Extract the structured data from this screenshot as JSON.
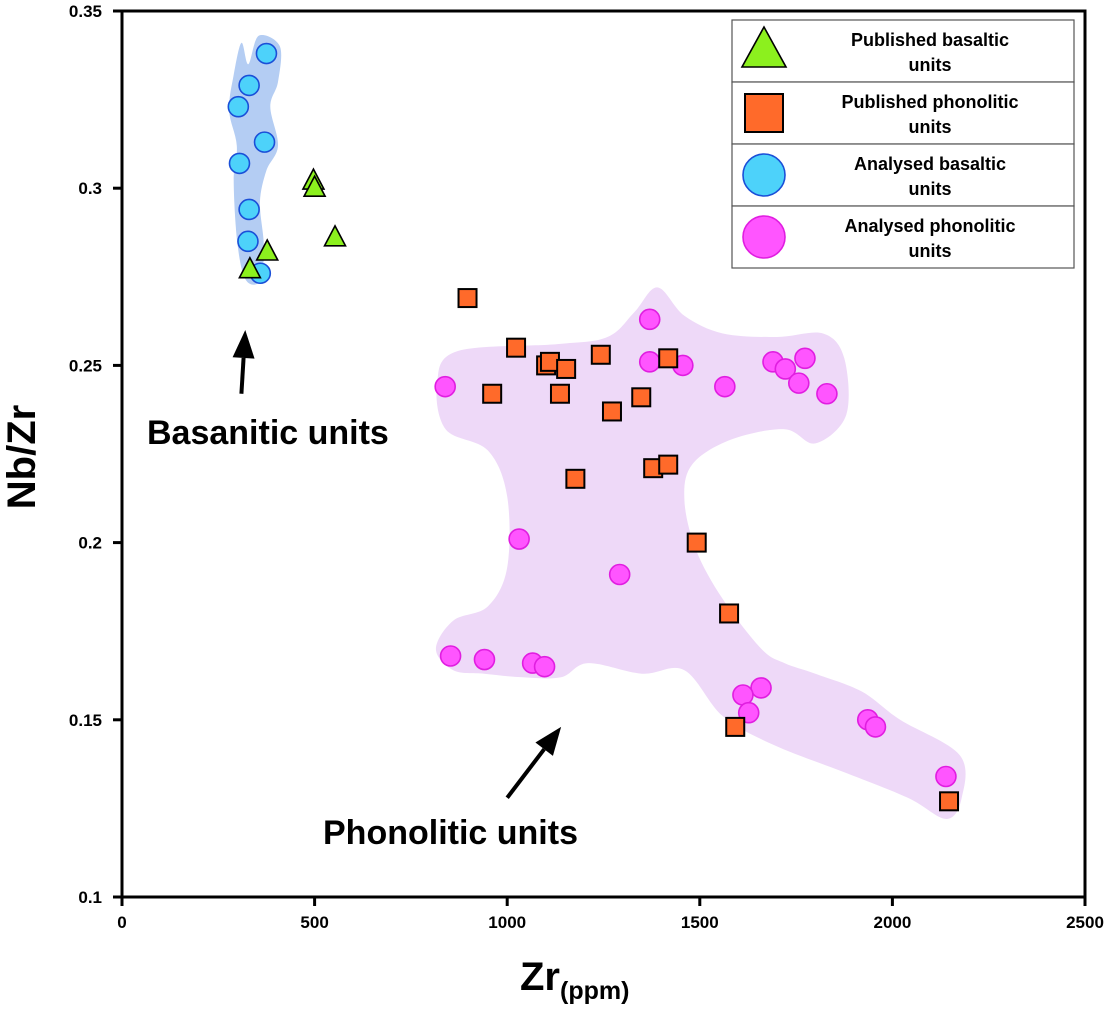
{
  "chart_data": {
    "type": "scatter",
    "title": "",
    "xlabel": "Zr",
    "xlabel_sub": "(ppm)",
    "ylabel": "Nb/Zr",
    "xlim": [
      0,
      2500
    ],
    "ylim": [
      0.1,
      0.35
    ],
    "x_ticks": [
      0,
      500,
      1000,
      1500,
      2000,
      2500
    ],
    "x_tick_labels": [
      "0",
      "500",
      "1000",
      "1500",
      "2000",
      "2500"
    ],
    "y_ticks": [
      0.1,
      0.15,
      0.2,
      0.25,
      0.3,
      0.35
    ],
    "y_tick_labels": [
      "0.1",
      "0.15",
      "0.2",
      "0.25",
      "0.3",
      "0.35"
    ],
    "grid": false,
    "legend_position": "top-right",
    "series": [
      {
        "name": "Published basaltic units",
        "marker": "triangle",
        "color": "#8cf01e",
        "points": [
          [
            497,
            0.302
          ],
          [
            500,
            0.3
          ],
          [
            553,
            0.286
          ],
          [
            377,
            0.282
          ],
          [
            332,
            0.277
          ]
        ]
      },
      {
        "name": "Published phonolitic units",
        "marker": "square",
        "color": "#ff6a2a",
        "points": [
          [
            897,
            0.269
          ],
          [
            1023,
            0.255
          ],
          [
            1101,
            0.25
          ],
          [
            1111,
            0.251
          ],
          [
            1153,
            0.249
          ],
          [
            1243,
            0.253
          ],
          [
            1418,
            0.252
          ],
          [
            961,
            0.242
          ],
          [
            1137,
            0.242
          ],
          [
            1272,
            0.237
          ],
          [
            1348,
            0.241
          ],
          [
            1379,
            0.221
          ],
          [
            1418,
            0.222
          ],
          [
            1177,
            0.218
          ],
          [
            1492,
            0.2
          ],
          [
            1576,
            0.18
          ],
          [
            1592,
            0.148
          ],
          [
            2147,
            0.127
          ]
        ]
      },
      {
        "name": "Analysed basaltic units",
        "marker": "circle",
        "color": "#4dd2fa",
        "points": [
          [
            375,
            0.338
          ],
          [
            330,
            0.329
          ],
          [
            302,
            0.323
          ],
          [
            370,
            0.313
          ],
          [
            305,
            0.307
          ],
          [
            330,
            0.294
          ],
          [
            327,
            0.285
          ],
          [
            359,
            0.276
          ]
        ]
      },
      {
        "name": "Analysed phonolitic units",
        "marker": "circle",
        "color": "#ff55ff",
        "points": [
          [
            839,
            0.244
          ],
          [
            1370,
            0.263
          ],
          [
            1370,
            0.251
          ],
          [
            1456,
            0.25
          ],
          [
            1565,
            0.244
          ],
          [
            1690,
            0.251
          ],
          [
            1722,
            0.249
          ],
          [
            1773,
            0.252
          ],
          [
            1757,
            0.245
          ],
          [
            1830,
            0.242
          ],
          [
            1031,
            0.201
          ],
          [
            1292,
            0.191
          ],
          [
            853,
            0.168
          ],
          [
            941,
            0.167
          ],
          [
            1066,
            0.166
          ],
          [
            1097,
            0.165
          ],
          [
            1659,
            0.159
          ],
          [
            1612,
            0.157
          ],
          [
            1627,
            0.152
          ],
          [
            1936,
            0.15
          ],
          [
            1956,
            0.148
          ],
          [
            2139,
            0.134
          ]
        ]
      }
    ],
    "regions": [
      {
        "name": "basanitic-field",
        "color": "#b4cdf3",
        "outline": [
          [
            328,
            0.335
          ],
          [
            355,
            0.343
          ],
          [
            410,
            0.34
          ],
          [
            405,
            0.33
          ],
          [
            385,
            0.323
          ],
          [
            405,
            0.312
          ],
          [
            375,
            0.305
          ],
          [
            358,
            0.296
          ],
          [
            368,
            0.284
          ],
          [
            360,
            0.274
          ],
          [
            322,
            0.274
          ],
          [
            300,
            0.284
          ],
          [
            290,
            0.302
          ],
          [
            298,
            0.312
          ],
          [
            278,
            0.322
          ],
          [
            290,
            0.332
          ],
          [
            310,
            0.341
          ]
        ]
      },
      {
        "name": "phonolitic-field",
        "color": "#eed9f8",
        "outline": [
          [
            818,
            0.245
          ],
          [
            870,
            0.254
          ],
          [
            1130,
            0.256
          ],
          [
            1260,
            0.258
          ],
          [
            1330,
            0.265
          ],
          [
            1390,
            0.272
          ],
          [
            1460,
            0.264
          ],
          [
            1560,
            0.259
          ],
          [
            1700,
            0.258
          ],
          [
            1820,
            0.259
          ],
          [
            1875,
            0.252
          ],
          [
            1880,
            0.236
          ],
          [
            1800,
            0.228
          ],
          [
            1720,
            0.232
          ],
          [
            1580,
            0.229
          ],
          [
            1480,
            0.222
          ],
          [
            1460,
            0.212
          ],
          [
            1490,
            0.198
          ],
          [
            1560,
            0.184
          ],
          [
            1660,
            0.17
          ],
          [
            1720,
            0.166
          ],
          [
            1800,
            0.163
          ],
          [
            1920,
            0.158
          ],
          [
            2020,
            0.15
          ],
          [
            2175,
            0.14
          ],
          [
            2180,
            0.128
          ],
          [
            2140,
            0.122
          ],
          [
            2040,
            0.128
          ],
          [
            1880,
            0.135
          ],
          [
            1690,
            0.143
          ],
          [
            1560,
            0.151
          ],
          [
            1460,
            0.164
          ],
          [
            1350,
            0.163
          ],
          [
            1210,
            0.166
          ],
          [
            1140,
            0.162
          ],
          [
            1040,
            0.162
          ],
          [
            940,
            0.163
          ],
          [
            860,
            0.164
          ],
          [
            815,
            0.17
          ],
          [
            860,
            0.178
          ],
          [
            950,
            0.182
          ],
          [
            1000,
            0.193
          ],
          [
            1000,
            0.213
          ],
          [
            950,
            0.226
          ],
          [
            840,
            0.232
          ]
        ]
      }
    ],
    "annotations": [
      {
        "text": "Basanitic units",
        "arrow_from": [
          310,
          0.242
        ],
        "arrow_to": [
          320,
          0.26
        ]
      },
      {
        "text": "Phonolitic units",
        "arrow_from": [
          1000,
          0.128
        ],
        "arrow_to": [
          1140,
          0.148
        ]
      }
    ],
    "legend": [
      {
        "line1": "Published basaltic",
        "line2": "units",
        "marker": "triangle",
        "color": "#8cf01e"
      },
      {
        "line1": "Published phonolitic",
        "line2": "units",
        "marker": "square",
        "color": "#ff6a2a"
      },
      {
        "line1": "Analysed basaltic",
        "line2": "units",
        "marker": "circle",
        "color": "#4dd2fa"
      },
      {
        "line1": "Analysed phonolitic",
        "line2": "units",
        "marker": "circle",
        "color": "#ff55ff"
      }
    ]
  }
}
